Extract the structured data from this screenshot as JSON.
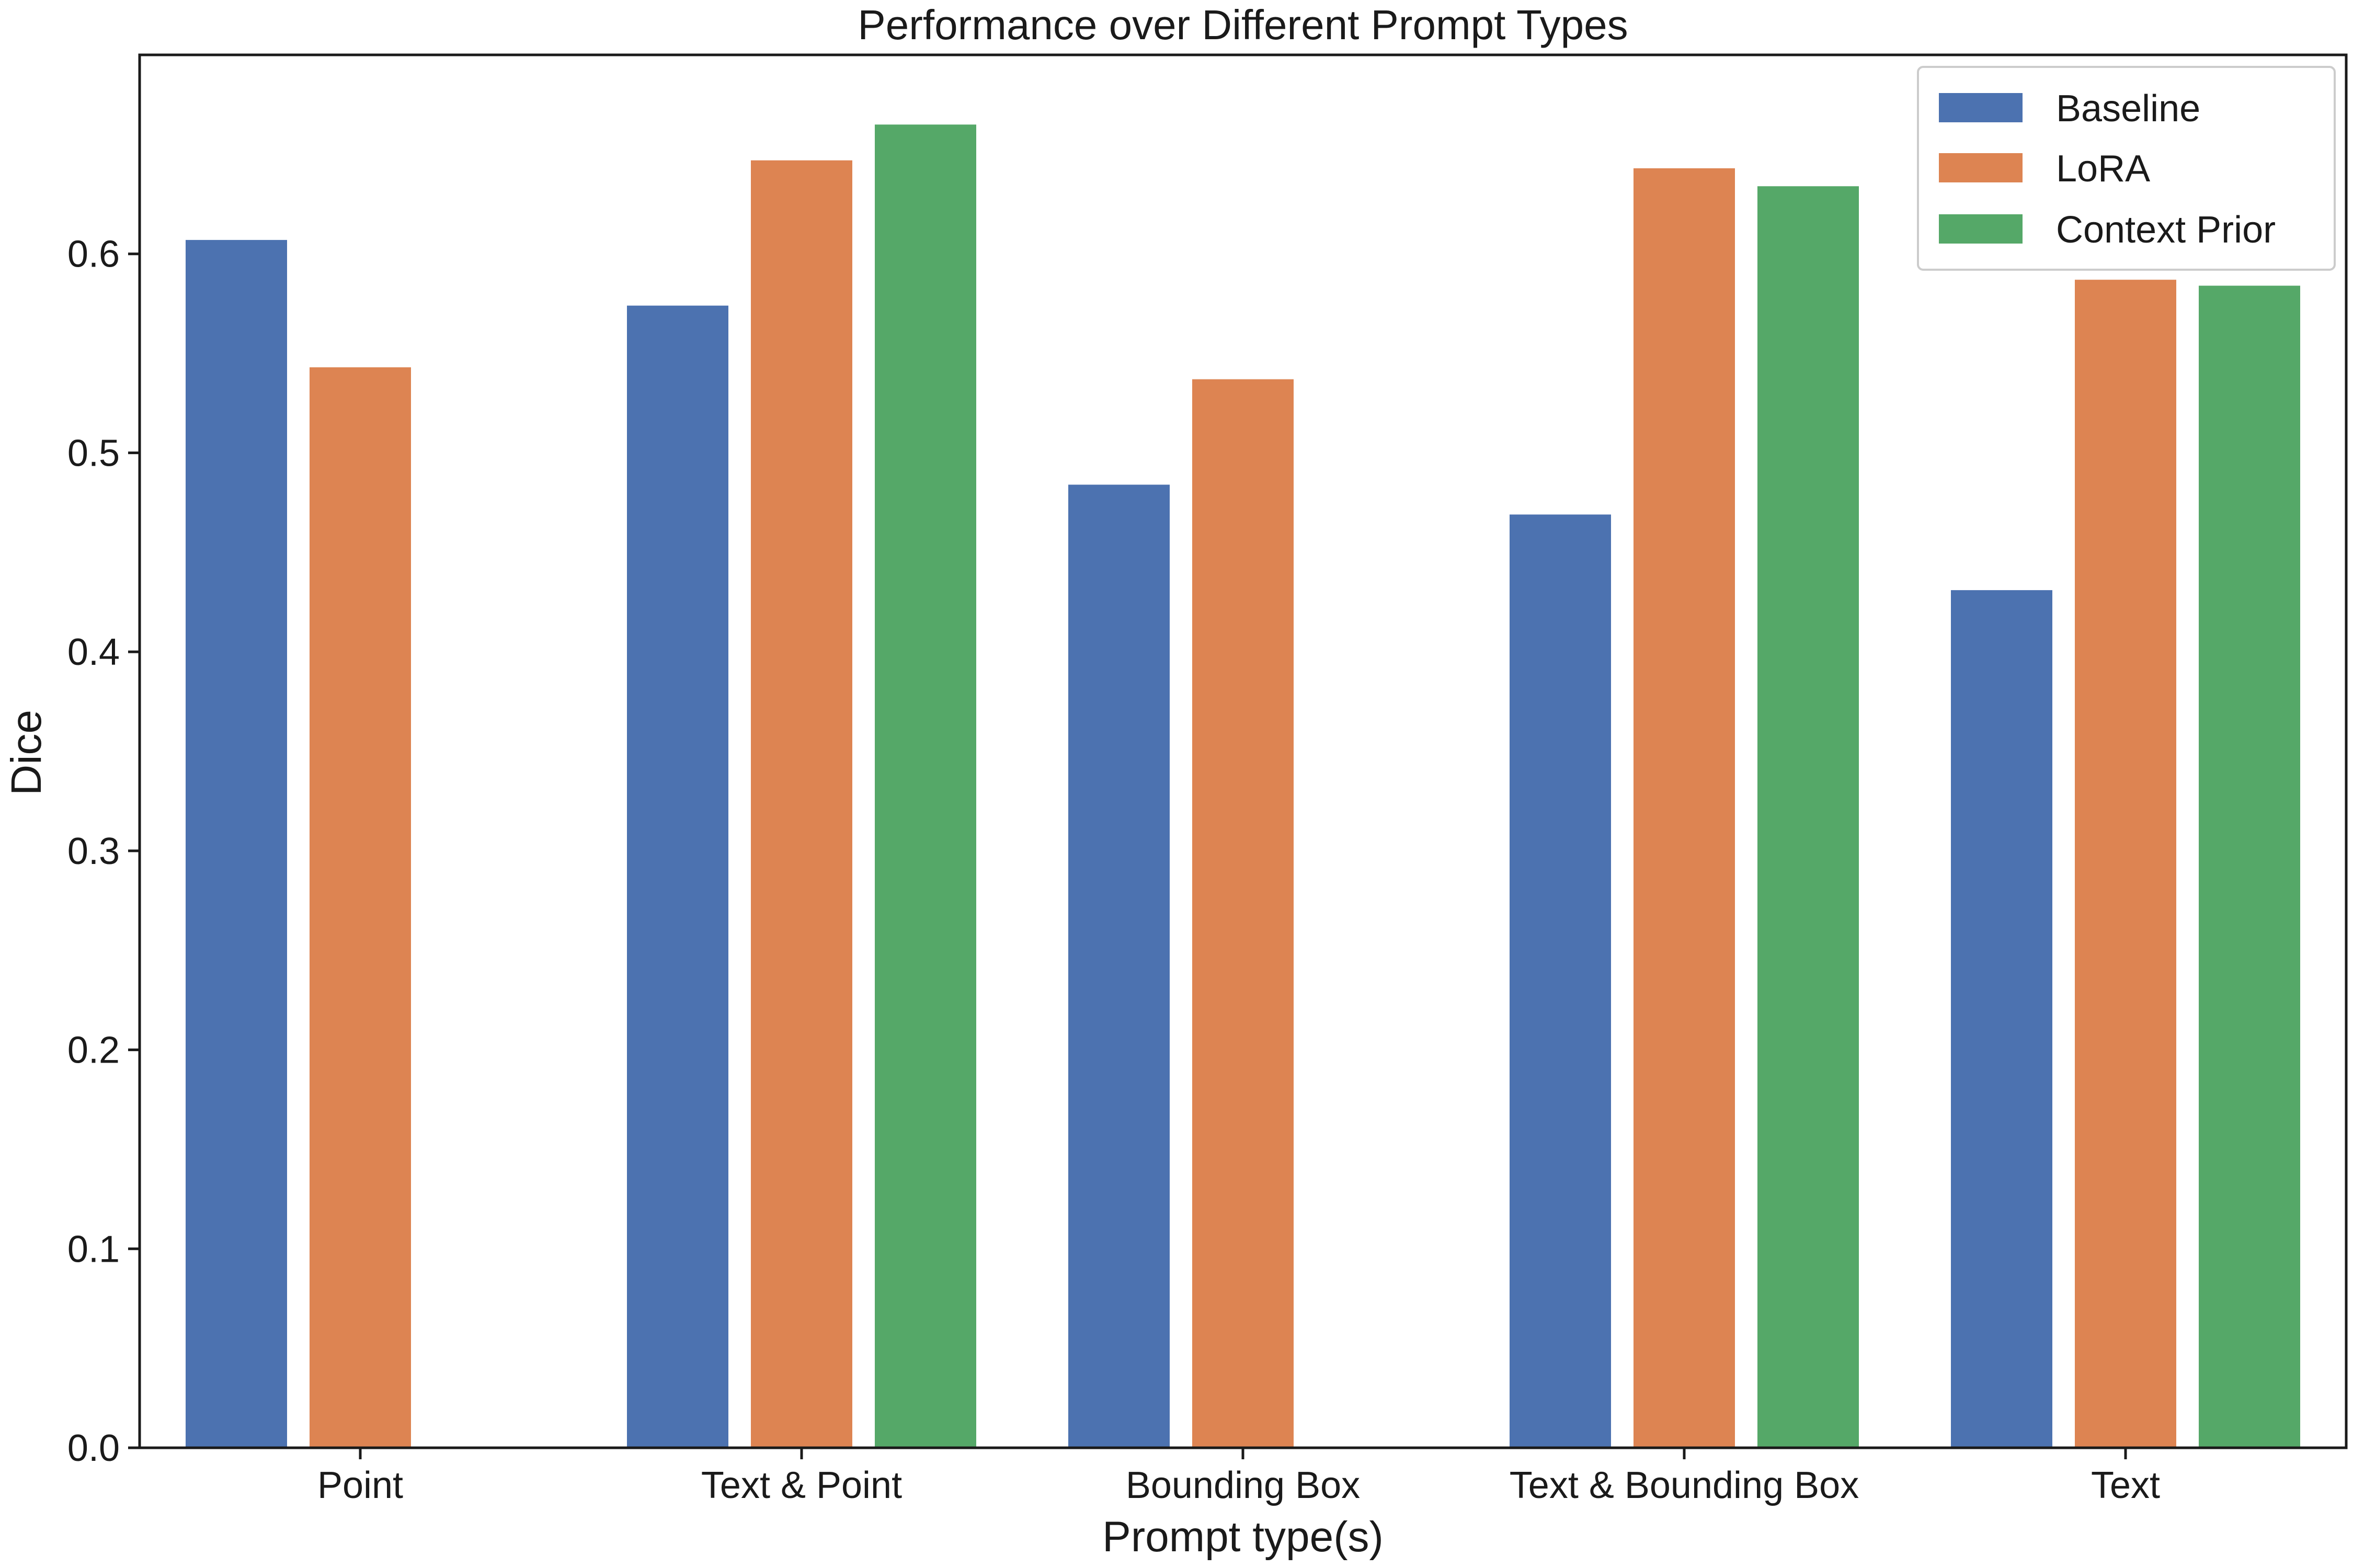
{
  "chart_data": {
    "type": "bar",
    "title": "Performance over Different Prompt Types",
    "xlabel": "Prompt type(s)",
    "ylabel": "Dice",
    "categories": [
      "Point",
      "Text & Point",
      "Bounding Box",
      "Text & Bounding Box",
      "Text"
    ],
    "series": [
      {
        "name": "Baseline",
        "color": "#4c72b0",
        "values": [
          0.607,
          0.574,
          0.484,
          0.469,
          0.431
        ]
      },
      {
        "name": "LoRA",
        "color": "#dd8452",
        "values": [
          0.543,
          0.647,
          0.537,
          0.643,
          0.587
        ]
      },
      {
        "name": "Context Prior",
        "color": "#55a868",
        "values": [
          null,
          0.665,
          null,
          0.634,
          0.584
        ]
      }
    ],
    "ylim": [
      0,
      0.7
    ],
    "yticks": [
      "0.0",
      "0.1",
      "0.2",
      "0.3",
      "0.4",
      "0.5",
      "0.6"
    ],
    "grid": false,
    "legend_position": "top-right"
  }
}
